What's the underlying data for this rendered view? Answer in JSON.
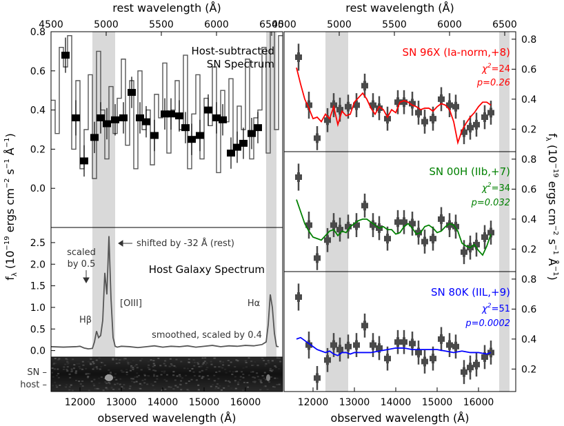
{
  "colors": {
    "spectrum": "#555555",
    "points": "#4a4a4a",
    "band": "#d9d9d9",
    "ia": "#ff0000",
    "iib": "#008000",
    "iil": "#0000ff"
  },
  "chart_data": [
    {
      "id": "host-subtracted",
      "type": "line",
      "title": "Host-subtracted SN Spectrum",
      "title_lines": [
        "Host-subtracted",
        "SN Spectrum"
      ],
      "top_xlabel": "rest wavelength (Å)",
      "top_ticks": [
        "4500",
        "5000",
        "5500",
        "6000",
        "6500"
      ],
      "top_tick_values": [
        4500,
        5000,
        5500,
        6000,
        6500
      ],
      "ylim": [
        -0.2,
        0.8
      ],
      "yticks": [
        "0.0",
        "0.2",
        "0.4",
        "0.6",
        "0.8"
      ],
      "ytick_values": [
        0.0,
        0.2,
        0.4,
        0.6,
        0.8
      ],
      "xlim": [
        11300,
        16900
      ],
      "shaded_bands": [
        [
          12300,
          12850
        ],
        [
          16500,
          16750
        ]
      ],
      "raw_spectrum": {
        "x": [
          11300,
          11400,
          11500,
          11600,
          11700,
          11800,
          11900,
          12000,
          12100,
          12200,
          12300,
          12400,
          12500,
          12600,
          12700,
          12800,
          12900,
          13000,
          13100,
          13200,
          13300,
          13400,
          13500,
          13600,
          13700,
          13800,
          13900,
          14000,
          14100,
          14200,
          14300,
          14400,
          14500,
          14600,
          14700,
          14800,
          14900,
          15000,
          15100,
          15200,
          15300,
          15400,
          15500,
          15600,
          15700,
          15800,
          15900,
          16000,
          16100,
          16200,
          16300,
          16400,
          16500,
          16600,
          16700,
          16800
        ],
        "y": [
          0.45,
          0.28,
          0.72,
          0.62,
          0.78,
          0.2,
          0.55,
          0.1,
          0.3,
          0.58,
          0.05,
          0.7,
          0.4,
          0.15,
          0.52,
          0.28,
          0.46,
          0.66,
          0.22,
          0.55,
          0.1,
          0.6,
          0.3,
          0.4,
          0.12,
          0.48,
          0.36,
          0.64,
          0.18,
          0.4,
          0.55,
          0.3,
          0.68,
          0.1,
          0.38,
          0.58,
          0.15,
          0.46,
          0.32,
          0.62,
          0.08,
          0.5,
          0.34,
          0.56,
          0.2,
          0.42,
          0.3,
          0.66,
          0.15,
          0.36,
          0.4,
          0.72,
          0.18,
          0.8,
          0.3,
          0.78
        ]
      },
      "binned": {
        "x": [
          11650,
          11900,
          12100,
          12350,
          12500,
          12650,
          12850,
          13050,
          13250,
          13450,
          13600,
          13800,
          14050,
          14200,
          14400,
          14550,
          14700,
          14900,
          15100,
          15300,
          15450,
          15650,
          15800,
          15950,
          16150,
          16300
        ],
        "y": [
          0.68,
          0.36,
          0.14,
          0.26,
          0.36,
          0.33,
          0.35,
          0.36,
          0.49,
          0.36,
          0.34,
          0.27,
          0.38,
          0.38,
          0.37,
          0.31,
          0.25,
          0.27,
          0.4,
          0.36,
          0.35,
          0.18,
          0.21,
          0.23,
          0.28,
          0.31
        ],
        "yerr": [
          0.09,
          0.09,
          0.08,
          0.08,
          0.08,
          0.08,
          0.08,
          0.08,
          0.08,
          0.08,
          0.08,
          0.08,
          0.08,
          0.08,
          0.08,
          0.08,
          0.08,
          0.08,
          0.08,
          0.08,
          0.08,
          0.08,
          0.08,
          0.08,
          0.08,
          0.08
        ],
        "xerr": [
          100,
          100,
          80,
          80,
          80,
          80,
          80,
          80,
          80,
          80,
          80,
          80,
          80,
          80,
          80,
          80,
          80,
          80,
          80,
          80,
          80,
          80,
          80,
          80,
          80,
          80
        ]
      }
    },
    {
      "id": "host-galaxy",
      "type": "line",
      "title": "Host Galaxy Spectrum",
      "ylim": [
        -0.15,
        2.85
      ],
      "yticks": [
        "0.0",
        "0.5",
        "1.0",
        "1.5",
        "2.0",
        "2.5"
      ],
      "ytick_values": [
        0.0,
        0.5,
        1.0,
        1.5,
        2.0,
        2.5
      ],
      "xlim": [
        11300,
        16900
      ],
      "shaded_bands": [
        [
          12300,
          12850
        ],
        [
          16500,
          16750
        ]
      ],
      "annotations": {
        "scaled": [
          "scaled",
          "by 0.5"
        ],
        "shifted": "shifted by -32 Å (rest)",
        "smoothed": "smoothed, scaled by 0.4",
        "hbeta": "Hβ",
        "oiii": "[OIII]",
        "halpha": "Hα"
      },
      "spectrum": {
        "x": [
          11300,
          11600,
          11900,
          12000,
          12100,
          12200,
          12300,
          12350,
          12400,
          12450,
          12500,
          12550,
          12600,
          12650,
          12700,
          12750,
          12800,
          12850,
          12900,
          13000,
          13200,
          13400,
          13600,
          13800,
          14000,
          14200,
          14400,
          14600,
          14800,
          15000,
          15200,
          15400,
          15600,
          15800,
          16000,
          16200,
          16400,
          16500,
          16550,
          16600,
          16650,
          16700,
          16750,
          16800
        ],
        "y": [
          0.09,
          0.08,
          0.09,
          0.1,
          0.06,
          0.04,
          0.05,
          0.2,
          0.45,
          0.3,
          0.35,
          0.7,
          1.8,
          1.3,
          2.65,
          1.2,
          0.3,
          0.1,
          0.08,
          0.1,
          0.09,
          0.07,
          0.09,
          0.11,
          0.08,
          0.1,
          0.09,
          0.11,
          0.08,
          0.1,
          0.12,
          0.09,
          0.11,
          0.1,
          0.12,
          0.11,
          0.14,
          0.2,
          0.6,
          1.3,
          1.0,
          0.4,
          0.1,
          0.09
        ]
      }
    },
    {
      "id": "fit-96x",
      "type": "line",
      "label": "SN 96X (Ia-norm,+8)",
      "chi2_label": "χ",
      "chi2": "=24",
      "p": "p=0.26",
      "ylim": [
        0.05,
        0.85
      ],
      "yticks": [
        "0.2",
        "0.4",
        "0.6",
        "0.8"
      ],
      "ytick_values": [
        0.2,
        0.4,
        0.6,
        0.8
      ],
      "model": {
        "x": [
          11600,
          11700,
          11800,
          11900,
          12000,
          12100,
          12200,
          12300,
          12400,
          12500,
          12600,
          12700,
          12800,
          12900,
          13000,
          13100,
          13200,
          13300,
          13400,
          13500,
          13600,
          13700,
          13800,
          13900,
          14000,
          14100,
          14200,
          14300,
          14400,
          14500,
          14600,
          14700,
          14800,
          14900,
          15000,
          15100,
          15200,
          15300,
          15400,
          15500,
          15600,
          15700,
          15800,
          15900,
          16000,
          16100,
          16200,
          16300
        ],
        "y": [
          0.61,
          0.5,
          0.4,
          0.34,
          0.27,
          0.28,
          0.25,
          0.3,
          0.27,
          0.35,
          0.23,
          0.32,
          0.29,
          0.3,
          0.38,
          0.41,
          0.44,
          0.4,
          0.34,
          0.3,
          0.35,
          0.33,
          0.28,
          0.33,
          0.31,
          0.38,
          0.39,
          0.38,
          0.36,
          0.35,
          0.33,
          0.34,
          0.34,
          0.32,
          0.35,
          0.37,
          0.36,
          0.33,
          0.25,
          0.11,
          0.19,
          0.24,
          0.28,
          0.31,
          0.35,
          0.38,
          0.38,
          0.36
        ]
      }
    },
    {
      "id": "fit-00h",
      "type": "line",
      "label": "SN 00H (IIb,+7)",
      "chi2_label": "χ",
      "chi2": "=34",
      "p": "p=0.032",
      "ylim": [
        0.05,
        0.85
      ],
      "yticks": [
        "0.2",
        "0.4",
        "0.6",
        "0.8"
      ],
      "ytick_values": [
        0.2,
        0.4,
        0.6,
        0.8
      ],
      "model": {
        "x": [
          11600,
          11700,
          11800,
          11900,
          12000,
          12100,
          12200,
          12300,
          12400,
          12500,
          12600,
          12700,
          12800,
          12900,
          13000,
          13100,
          13200,
          13300,
          13400,
          13500,
          13600,
          13700,
          13800,
          13900,
          14000,
          14100,
          14200,
          14300,
          14400,
          14500,
          14600,
          14700,
          14800,
          14900,
          15000,
          15100,
          15200,
          15300,
          15400,
          15500,
          15600,
          15700,
          15800,
          15900,
          16000,
          16100,
          16200,
          16300
        ],
        "y": [
          0.53,
          0.45,
          0.37,
          0.32,
          0.28,
          0.27,
          0.26,
          0.29,
          0.32,
          0.33,
          0.29,
          0.32,
          0.31,
          0.35,
          0.37,
          0.39,
          0.4,
          0.4,
          0.38,
          0.36,
          0.34,
          0.35,
          0.33,
          0.33,
          0.3,
          0.31,
          0.35,
          0.37,
          0.34,
          0.3,
          0.31,
          0.35,
          0.36,
          0.34,
          0.31,
          0.32,
          0.35,
          0.37,
          0.36,
          0.32,
          0.24,
          0.22,
          0.21,
          0.23,
          0.19,
          0.16,
          0.22,
          0.3
        ]
      }
    },
    {
      "id": "fit-80k",
      "type": "line",
      "label": "SN 80K (IIL,+9)",
      "chi2_label": "χ",
      "chi2": "=51",
      "p": "p=0.0002",
      "ylim": [
        0.05,
        0.85
      ],
      "yticks": [
        "0.2",
        "0.4",
        "0.6",
        "0.8"
      ],
      "ytick_values": [
        0.2,
        0.4,
        0.6,
        0.8
      ],
      "model": {
        "x": [
          11600,
          11700,
          11800,
          11900,
          12000,
          12100,
          12200,
          12300,
          12400,
          12500,
          12600,
          12700,
          12800,
          12900,
          13000,
          13200,
          13400,
          13600,
          13800,
          14000,
          14200,
          14400,
          14600,
          14800,
          15000,
          15200,
          15400,
          15600,
          15800,
          16000,
          16200,
          16300
        ],
        "y": [
          0.4,
          0.41,
          0.39,
          0.37,
          0.35,
          0.33,
          0.32,
          0.31,
          0.32,
          0.3,
          0.29,
          0.31,
          0.31,
          0.3,
          0.31,
          0.31,
          0.31,
          0.32,
          0.33,
          0.34,
          0.34,
          0.33,
          0.33,
          0.33,
          0.33,
          0.32,
          0.31,
          0.32,
          0.31,
          0.31,
          0.3,
          0.31
        ]
      }
    }
  ],
  "shared": {
    "xlabel": "observed wavelength (Å)",
    "xticks": [
      "12000",
      "13000",
      "14000",
      "15000",
      "16000"
    ],
    "xtick_values": [
      12000,
      13000,
      14000,
      15000,
      16000
    ],
    "left_ylabel": "f",
    "right_ylabel": "f",
    "image_labels": [
      "SN –",
      "host –"
    ]
  }
}
